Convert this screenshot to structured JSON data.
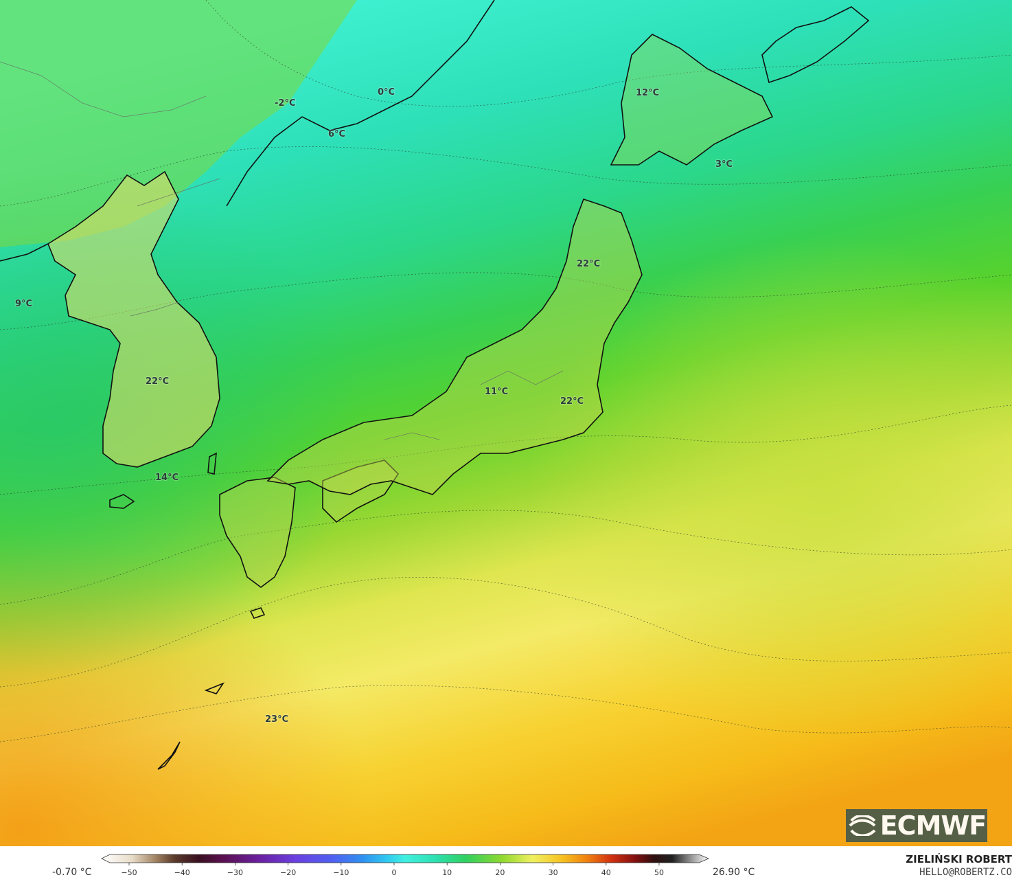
{
  "temperature_labels": [
    "0°C",
    "-2°C",
    "6°C",
    "12°C",
    "3°C",
    "22°C",
    "9°C",
    "22°C",
    "11°C",
    "22°C",
    "14°C",
    "23°C"
  ],
  "legend": {
    "min_label": "-0.70 °C",
    "max_label": "26.90 °C",
    "ticks": [
      "−50",
      "−40",
      "−30",
      "−20",
      "−10",
      "0",
      "10",
      "20",
      "30",
      "40",
      "50"
    ],
    "range": [
      -50,
      55
    ]
  },
  "branding": {
    "logo_text": "ECMWF",
    "logo_icon": "ecmwf-logo-icon",
    "credit_name": "ZIELIŃSKI ROBERT",
    "credit_email": "HELLO@ROBERTZ.CO"
  },
  "colors": {
    "cold_cyan": "#2fe0c0",
    "sea_green": "#2ecf7a",
    "mid_green": "#56d02a",
    "yellow_green": "#c8e040",
    "yellow": "#f2e65a",
    "orange_yellow": "#f6c320",
    "orange": "#f49a10",
    "coast": "#111111"
  }
}
